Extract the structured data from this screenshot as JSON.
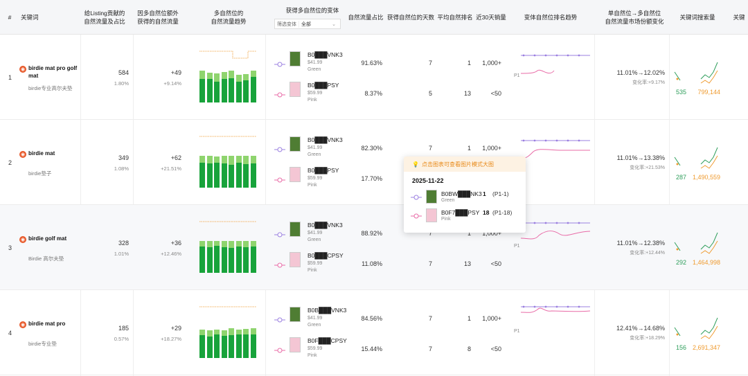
{
  "header": {
    "idx": "#",
    "keyword": "关键词",
    "listing_contrib": "给Listing贡献的\n自然流量及占比",
    "extra_traffic": "因多自然位额外\n获得的自然流量",
    "multi_trend": "多自然位的\n自然流量趋势",
    "variants": "获得多自然位的变体",
    "filter_label": "筛选变体",
    "filter_value": "全部",
    "share": "自然流量占比",
    "days": "获得自然位的天数",
    "avg_rank": "平均自然排名",
    "sales30": "近30天销量",
    "rank_trend": "变体自然位排名趋势",
    "share_change": "单自然位→多自然位\n自然流量市场份额变化",
    "search_volume": "关键词搜索量",
    "more": "关键"
  },
  "rows": [
    {
      "idx": "1",
      "kw": "birdie mat pro golf mat",
      "kw_cn": "birdie专业高尔夫垫",
      "contrib": "584",
      "contrib_pct": "1.80%",
      "extra": "+49",
      "extra_pct": "+9.14%",
      "v1": {
        "id": "B0███VNK3",
        "price": "$41.99",
        "color": "Green",
        "share": "91.63%",
        "days": "7",
        "rank": "1",
        "sales": "1,000+"
      },
      "v2": {
        "id": "B0███PSY",
        "price": "$59.99",
        "color": "Pink",
        "share": "8.37%",
        "days": "5",
        "rank": "13",
        "sales": "<50"
      },
      "share_change": "11.01%→12.02%",
      "share_sub": "变化率:+9.17%",
      "sv_g": "535",
      "sv_o": "799,144",
      "p1": "P1"
    },
    {
      "idx": "2",
      "kw": "birdie mat",
      "kw_cn": "birdie垫子",
      "contrib": "349",
      "contrib_pct": "1.08%",
      "extra": "+62",
      "extra_pct": "+21.51%",
      "v1": {
        "id": "B0███VNK3",
        "price": "$41.99",
        "color": "Green",
        "share": "82.30%",
        "days": "7",
        "rank": "1",
        "sales": "1,000+"
      },
      "v2": {
        "id": "B0███PSY",
        "price": "$59.99",
        "color": "Pink",
        "share": "17.70%",
        "days": "",
        "rank": "",
        "sales": ""
      },
      "share_change": "11.01%→13.38%",
      "share_sub": "变化率:+21.53%",
      "sv_g": "287",
      "sv_o": "1,490,559",
      "p1": ""
    },
    {
      "idx": "3",
      "kw": "birdie golf mat",
      "kw_cn": "Birdie 高尔夫垫",
      "contrib": "328",
      "contrib_pct": "1.01%",
      "extra": "+36",
      "extra_pct": "+12.46%",
      "v1": {
        "id": "B0███VNK3",
        "price": "$41.99",
        "color": "Green",
        "share": "88.92%",
        "days": "7",
        "rank": "1",
        "sales": "1,000+"
      },
      "v2": {
        "id": "B0███CPSY",
        "price": "$59.99",
        "color": "Pink",
        "share": "11.08%",
        "days": "7",
        "rank": "13",
        "sales": "<50"
      },
      "share_change": "11.01%→12.38%",
      "share_sub": "变化率:+12.44%",
      "sv_g": "292",
      "sv_o": "1,464,998",
      "p1": "P1"
    },
    {
      "idx": "4",
      "kw": "birdie mat pro",
      "kw_cn": "birdie专业垫",
      "contrib": "185",
      "contrib_pct": "0.57%",
      "extra": "+29",
      "extra_pct": "+18.27%",
      "v1": {
        "id": "B0B███VNK3",
        "price": "$41.99",
        "color": "Green",
        "share": "84.56%",
        "days": "7",
        "rank": "1",
        "sales": "1,000+"
      },
      "v2": {
        "id": "B0F███CPSY",
        "price": "$59.99",
        "color": "Pink",
        "share": "15.44%",
        "days": "7",
        "rank": "8",
        "sales": "<50"
      },
      "share_change": "12.41%→14.68%",
      "share_sub": "变化率:+18.29%",
      "sv_g": "156",
      "sv_o": "2,691,347",
      "p1": "P1"
    }
  ],
  "tooltip": {
    "hint": "点击图表可查看图片模式大图",
    "date": "2025-11-22",
    "item1": {
      "id": "B0BW███NK3",
      "rank": "1",
      "tag": "(P1-1)",
      "color": "Green"
    },
    "item2": {
      "id": "B0F7███PSY",
      "rank": "18",
      "tag": "(P1-18)",
      "color": "Pink"
    }
  },
  "colors": {
    "green_dark": "#18a33b",
    "green_light": "#8fd46e",
    "purple": "#9a7fe0",
    "pink": "#e86aa6",
    "orange": "#ef9a2e",
    "teal": "#2e9e5b"
  }
}
